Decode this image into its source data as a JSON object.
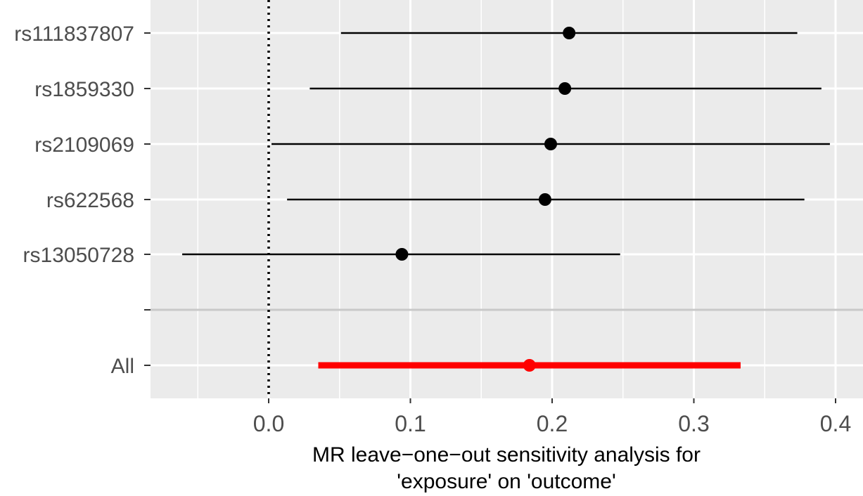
{
  "chart_data": {
    "type": "forest",
    "xlabel_lines": [
      "MR leave−one−out sensitivity analysis for",
      "'exposure' on 'outcome'"
    ],
    "ylabel": "",
    "xlim": [
      -0.083,
      0.41
    ],
    "x_ticks": [
      0.0,
      0.1,
      0.2,
      0.3,
      0.4
    ],
    "x_tick_labels": [
      "0.0",
      "0.1",
      "0.2",
      "0.3",
      "0.4"
    ],
    "reference_line": 0.0,
    "grid": true,
    "rows": [
      {
        "label": "rs111837807",
        "estimate": 0.212,
        "lower": 0.051,
        "upper": 0.373
      },
      {
        "label": "rs1859330",
        "estimate": 0.209,
        "lower": 0.029,
        "upper": 0.39
      },
      {
        "label": "rs2109069",
        "estimate": 0.199,
        "lower": 0.002,
        "upper": 0.396
      },
      {
        "label": "rs622568",
        "estimate": 0.195,
        "lower": 0.013,
        "upper": 0.378
      },
      {
        "label": "rs13050728",
        "estimate": 0.094,
        "lower": -0.061,
        "upper": 0.248
      }
    ],
    "overall": {
      "label": "All",
      "estimate": 0.184,
      "lower": 0.035,
      "upper": 0.333
    },
    "colors": {
      "snp": "#000000",
      "overall": "#ff0000",
      "panel": "#ebebeb",
      "grid": "#ffffff",
      "separator": "#c8c8c8"
    }
  }
}
